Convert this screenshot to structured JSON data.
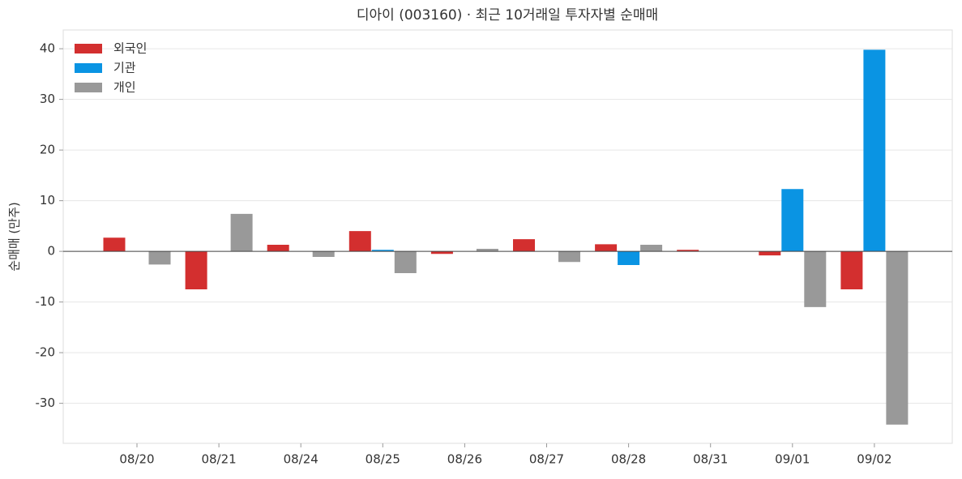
{
  "chart_data": {
    "type": "bar",
    "title": "디아이 (003160) · 최근 10거래일 투자자별 순매매",
    "y_label": "순매매 (만주)",
    "categories": [
      "08/20",
      "08/21",
      "08/24",
      "08/25",
      "08/26",
      "08/27",
      "08/28",
      "08/31",
      "09/01",
      "09/02"
    ],
    "series": [
      {
        "name": "외국인",
        "color": "#d32f2f",
        "values": [
          2.7,
          -7.5,
          1.3,
          4.0,
          -0.5,
          2.4,
          1.4,
          0.3,
          -0.8,
          -7.5
        ]
      },
      {
        "name": "기관",
        "color": "#0a94e3",
        "values": [
          0,
          0,
          0,
          0.3,
          0,
          0,
          -2.7,
          0,
          12.3,
          39.8
        ]
      },
      {
        "name": "개인",
        "color": "#999999",
        "values": [
          -2.6,
          7.4,
          -1.1,
          -4.3,
          0.5,
          -2.1,
          1.3,
          0,
          -11.0,
          -34.2
        ]
      }
    ],
    "ylim": [
      -37.9,
      43.7
    ],
    "yticks": [
      -30,
      -20,
      -10,
      0,
      10,
      20,
      30,
      40
    ],
    "grid": true,
    "legend": "upper-left"
  }
}
